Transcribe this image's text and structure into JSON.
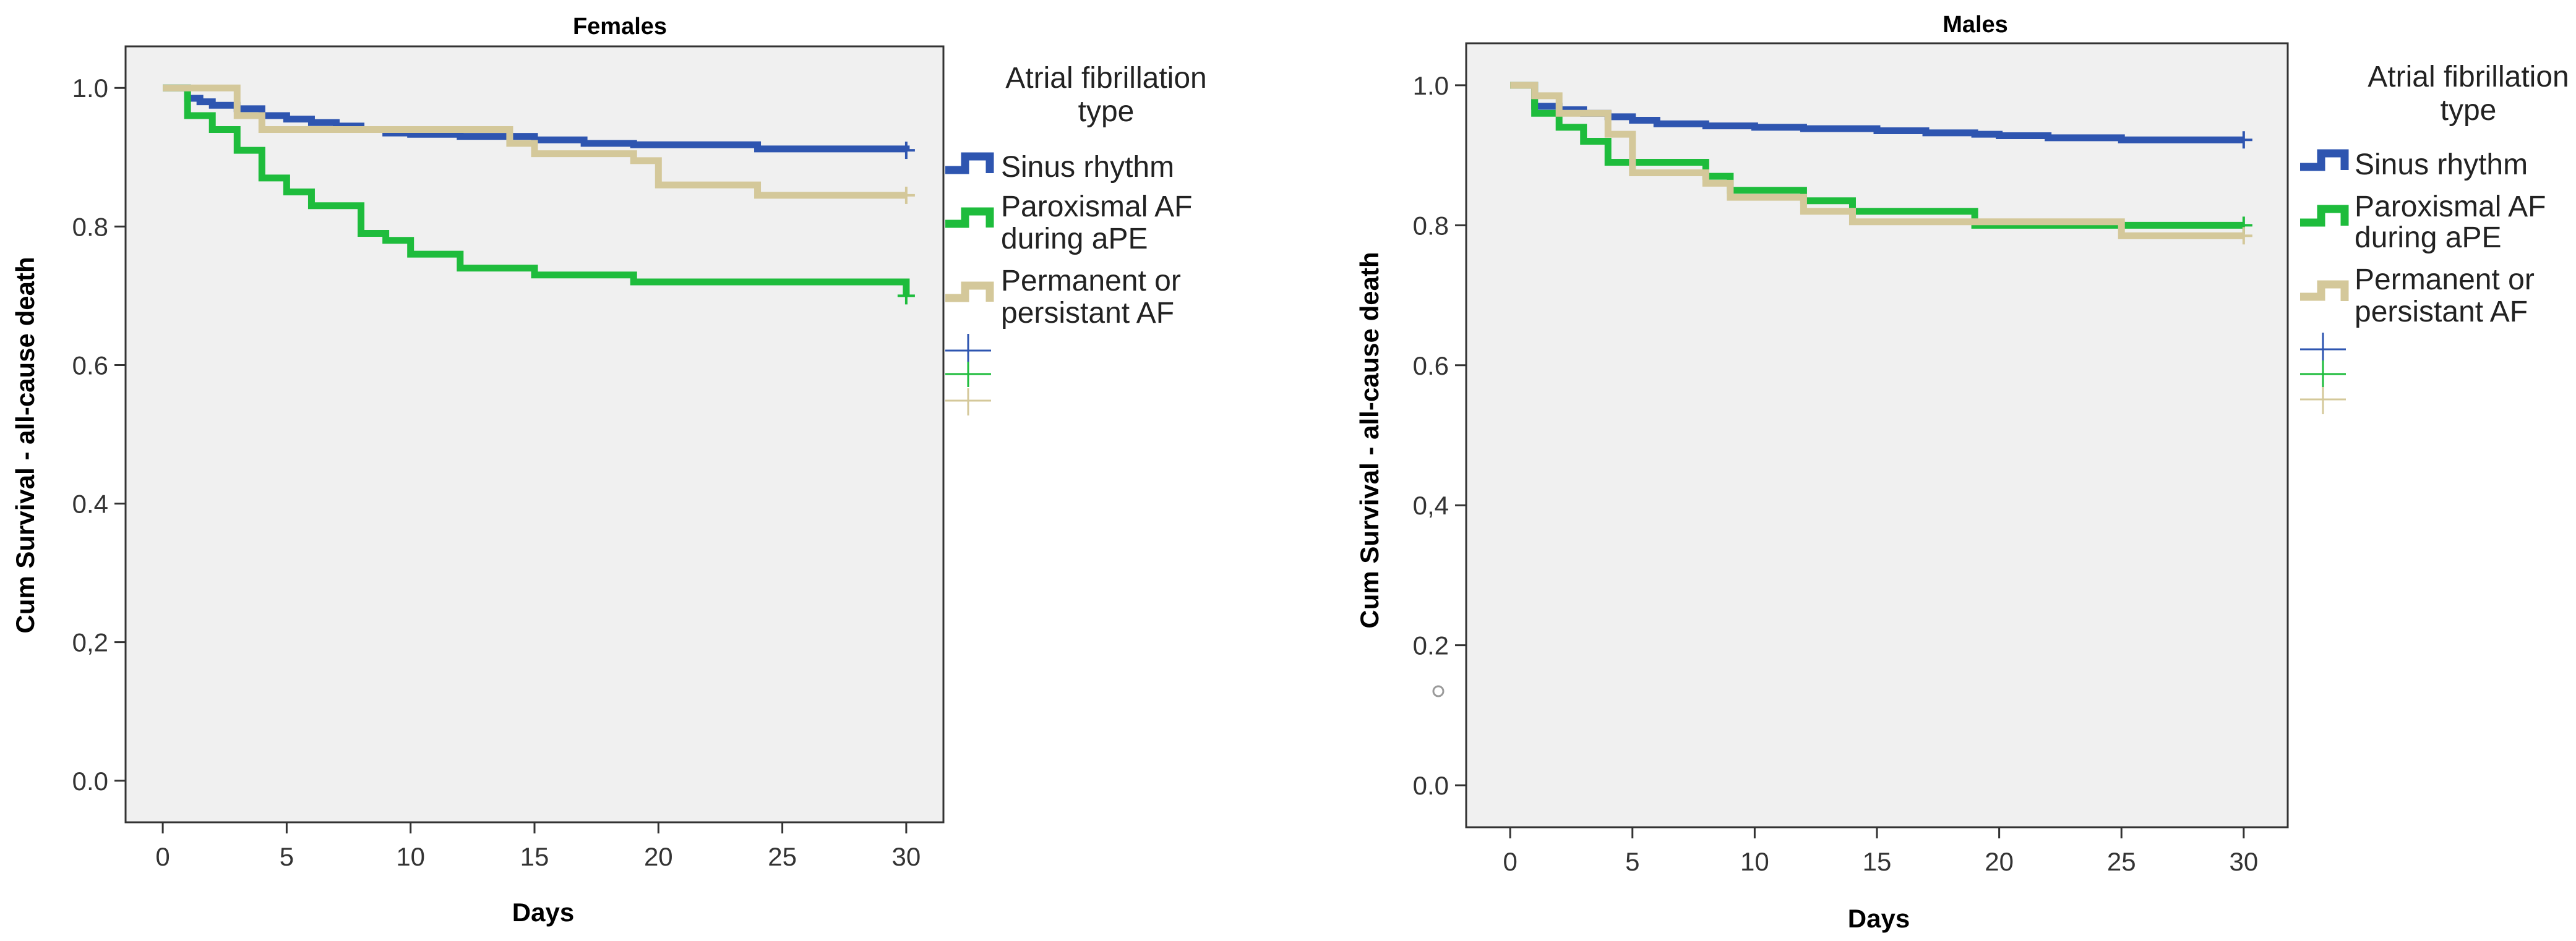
{
  "chart_data": [
    {
      "type": "line",
      "subtype": "kaplan-meier step",
      "title": "Females",
      "xlabel": "Days",
      "ylabel": "Cum Survival - all-cause death",
      "xlim": [
        -1.5,
        31.5
      ],
      "ylim": [
        -0.06,
        1.06
      ],
      "xticks": [
        "0",
        "5",
        "10",
        "15",
        "20",
        "25",
        "30"
      ],
      "yticks": [
        "0.0",
        "0,2",
        "0.4",
        "0.6",
        "0.8",
        "1.0"
      ],
      "legend_title": [
        "Atrial fibrillation",
        "type"
      ],
      "series": [
        {
          "name": [
            "Sinus rhythm"
          ],
          "color": "#2e55b0",
          "x": [
            0,
            1,
            1.5,
            2,
            3,
            4,
            5,
            6,
            7,
            8,
            9,
            10,
            12,
            15,
            17,
            19,
            24,
            30
          ],
          "y": [
            1.0,
            0.985,
            0.98,
            0.975,
            0.97,
            0.96,
            0.955,
            0.95,
            0.945,
            0.94,
            0.935,
            0.933,
            0.93,
            0.925,
            0.92,
            0.918,
            0.912,
            0.91
          ],
          "censored_at": 30
        },
        {
          "name": [
            "Paroxismal AF",
            "during aPE"
          ],
          "color": "#1ebc3c",
          "x": [
            0,
            1,
            2,
            3,
            4,
            5,
            6,
            8,
            9,
            10,
            12,
            15,
            19,
            30
          ],
          "y": [
            1.0,
            0.96,
            0.94,
            0.91,
            0.87,
            0.85,
            0.83,
            0.79,
            0.78,
            0.76,
            0.74,
            0.73,
            0.72,
            0.7
          ],
          "censored_at": 30
        },
        {
          "name": [
            "Permanent or",
            "persistant AF"
          ],
          "color": "#d4c89a",
          "x": [
            0,
            3,
            4,
            14,
            15,
            19,
            20,
            24,
            30
          ],
          "y": [
            1.0,
            0.96,
            0.94,
            0.92,
            0.905,
            0.895,
            0.86,
            0.845,
            0.845
          ],
          "censored_at": 30
        }
      ]
    },
    {
      "type": "line",
      "subtype": "kaplan-meier step",
      "title": "Males",
      "xlabel": "Days",
      "ylabel": "Cum Survival - all-cause death",
      "xlim": [
        -1.8,
        31.8
      ],
      "ylim": [
        -0.06,
        1.06
      ],
      "xticks": [
        "0",
        "5",
        "10",
        "15",
        "20",
        "25",
        "30"
      ],
      "yticks": [
        "0.0",
        "0.2",
        "0,4",
        "0.6",
        "0.8",
        "1.0"
      ],
      "legend_title": [
        "Atrial fibrillation",
        "type"
      ],
      "series": [
        {
          "name": [
            "Sinus rhythm"
          ],
          "color": "#2e55b0",
          "x": [
            0,
            1,
            2,
            3,
            4,
            5,
            6,
            8,
            10,
            12,
            15,
            17,
            19,
            20,
            22,
            25,
            30
          ],
          "y": [
            1.0,
            0.97,
            0.965,
            0.96,
            0.955,
            0.95,
            0.945,
            0.942,
            0.94,
            0.938,
            0.935,
            0.932,
            0.93,
            0.928,
            0.925,
            0.922,
            0.922
          ],
          "censored_at": 30
        },
        {
          "name": [
            "Paroxismal AF",
            "during aPE"
          ],
          "color": "#1ebc3c",
          "x": [
            0,
            1,
            2,
            3,
            4,
            8,
            9,
            12,
            14,
            19,
            30
          ],
          "y": [
            1.0,
            0.96,
            0.94,
            0.92,
            0.89,
            0.87,
            0.85,
            0.835,
            0.82,
            0.8,
            0.8
          ],
          "censored_at": 30
        },
        {
          "name": [
            "Permanent or",
            "persistant AF"
          ],
          "color": "#d4c89a",
          "x": [
            0,
            1,
            2,
            4,
            5,
            8,
            9,
            12,
            14,
            25,
            30
          ],
          "y": [
            1.0,
            0.985,
            0.96,
            0.93,
            0.875,
            0.86,
            0.84,
            0.82,
            0.805,
            0.785,
            0.785
          ],
          "censored_at": 30
        }
      ]
    }
  ]
}
